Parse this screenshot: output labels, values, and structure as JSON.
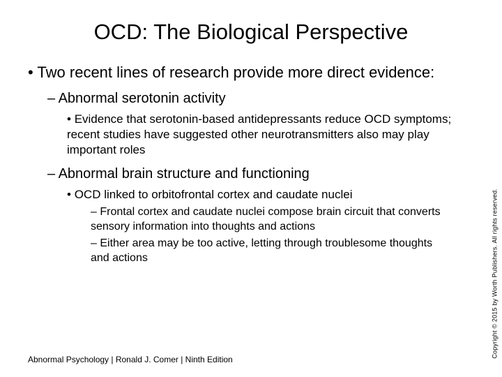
{
  "title": "OCD: The Biological Perspective",
  "bullets": {
    "l1_1": "Two recent lines of research provide more direct evidence:",
    "l2_1": "Abnormal serotonin activity",
    "l3_1": "Evidence that serotonin-based antidepressants reduce OCD symptoms; recent studies have suggested other neurotransmitters also may play important roles",
    "l2_2": "Abnormal brain structure and functioning",
    "l3_2": "OCD linked to orbitofrontal cortex and caudate nuclei",
    "l4_1": "Frontal cortex and caudate nuclei compose brain circuit that converts sensory information into thoughts and actions",
    "l4_2": "Either area may be too active, letting through troublesome thoughts and actions"
  },
  "footer": "Abnormal Psychology | Ronald J. Comer | Ninth Edition",
  "copyright": "Copyright © 2015 by Worth Publishers. All rights reserved.",
  "colors": {
    "background": "#ffffff",
    "text": "#000000"
  }
}
